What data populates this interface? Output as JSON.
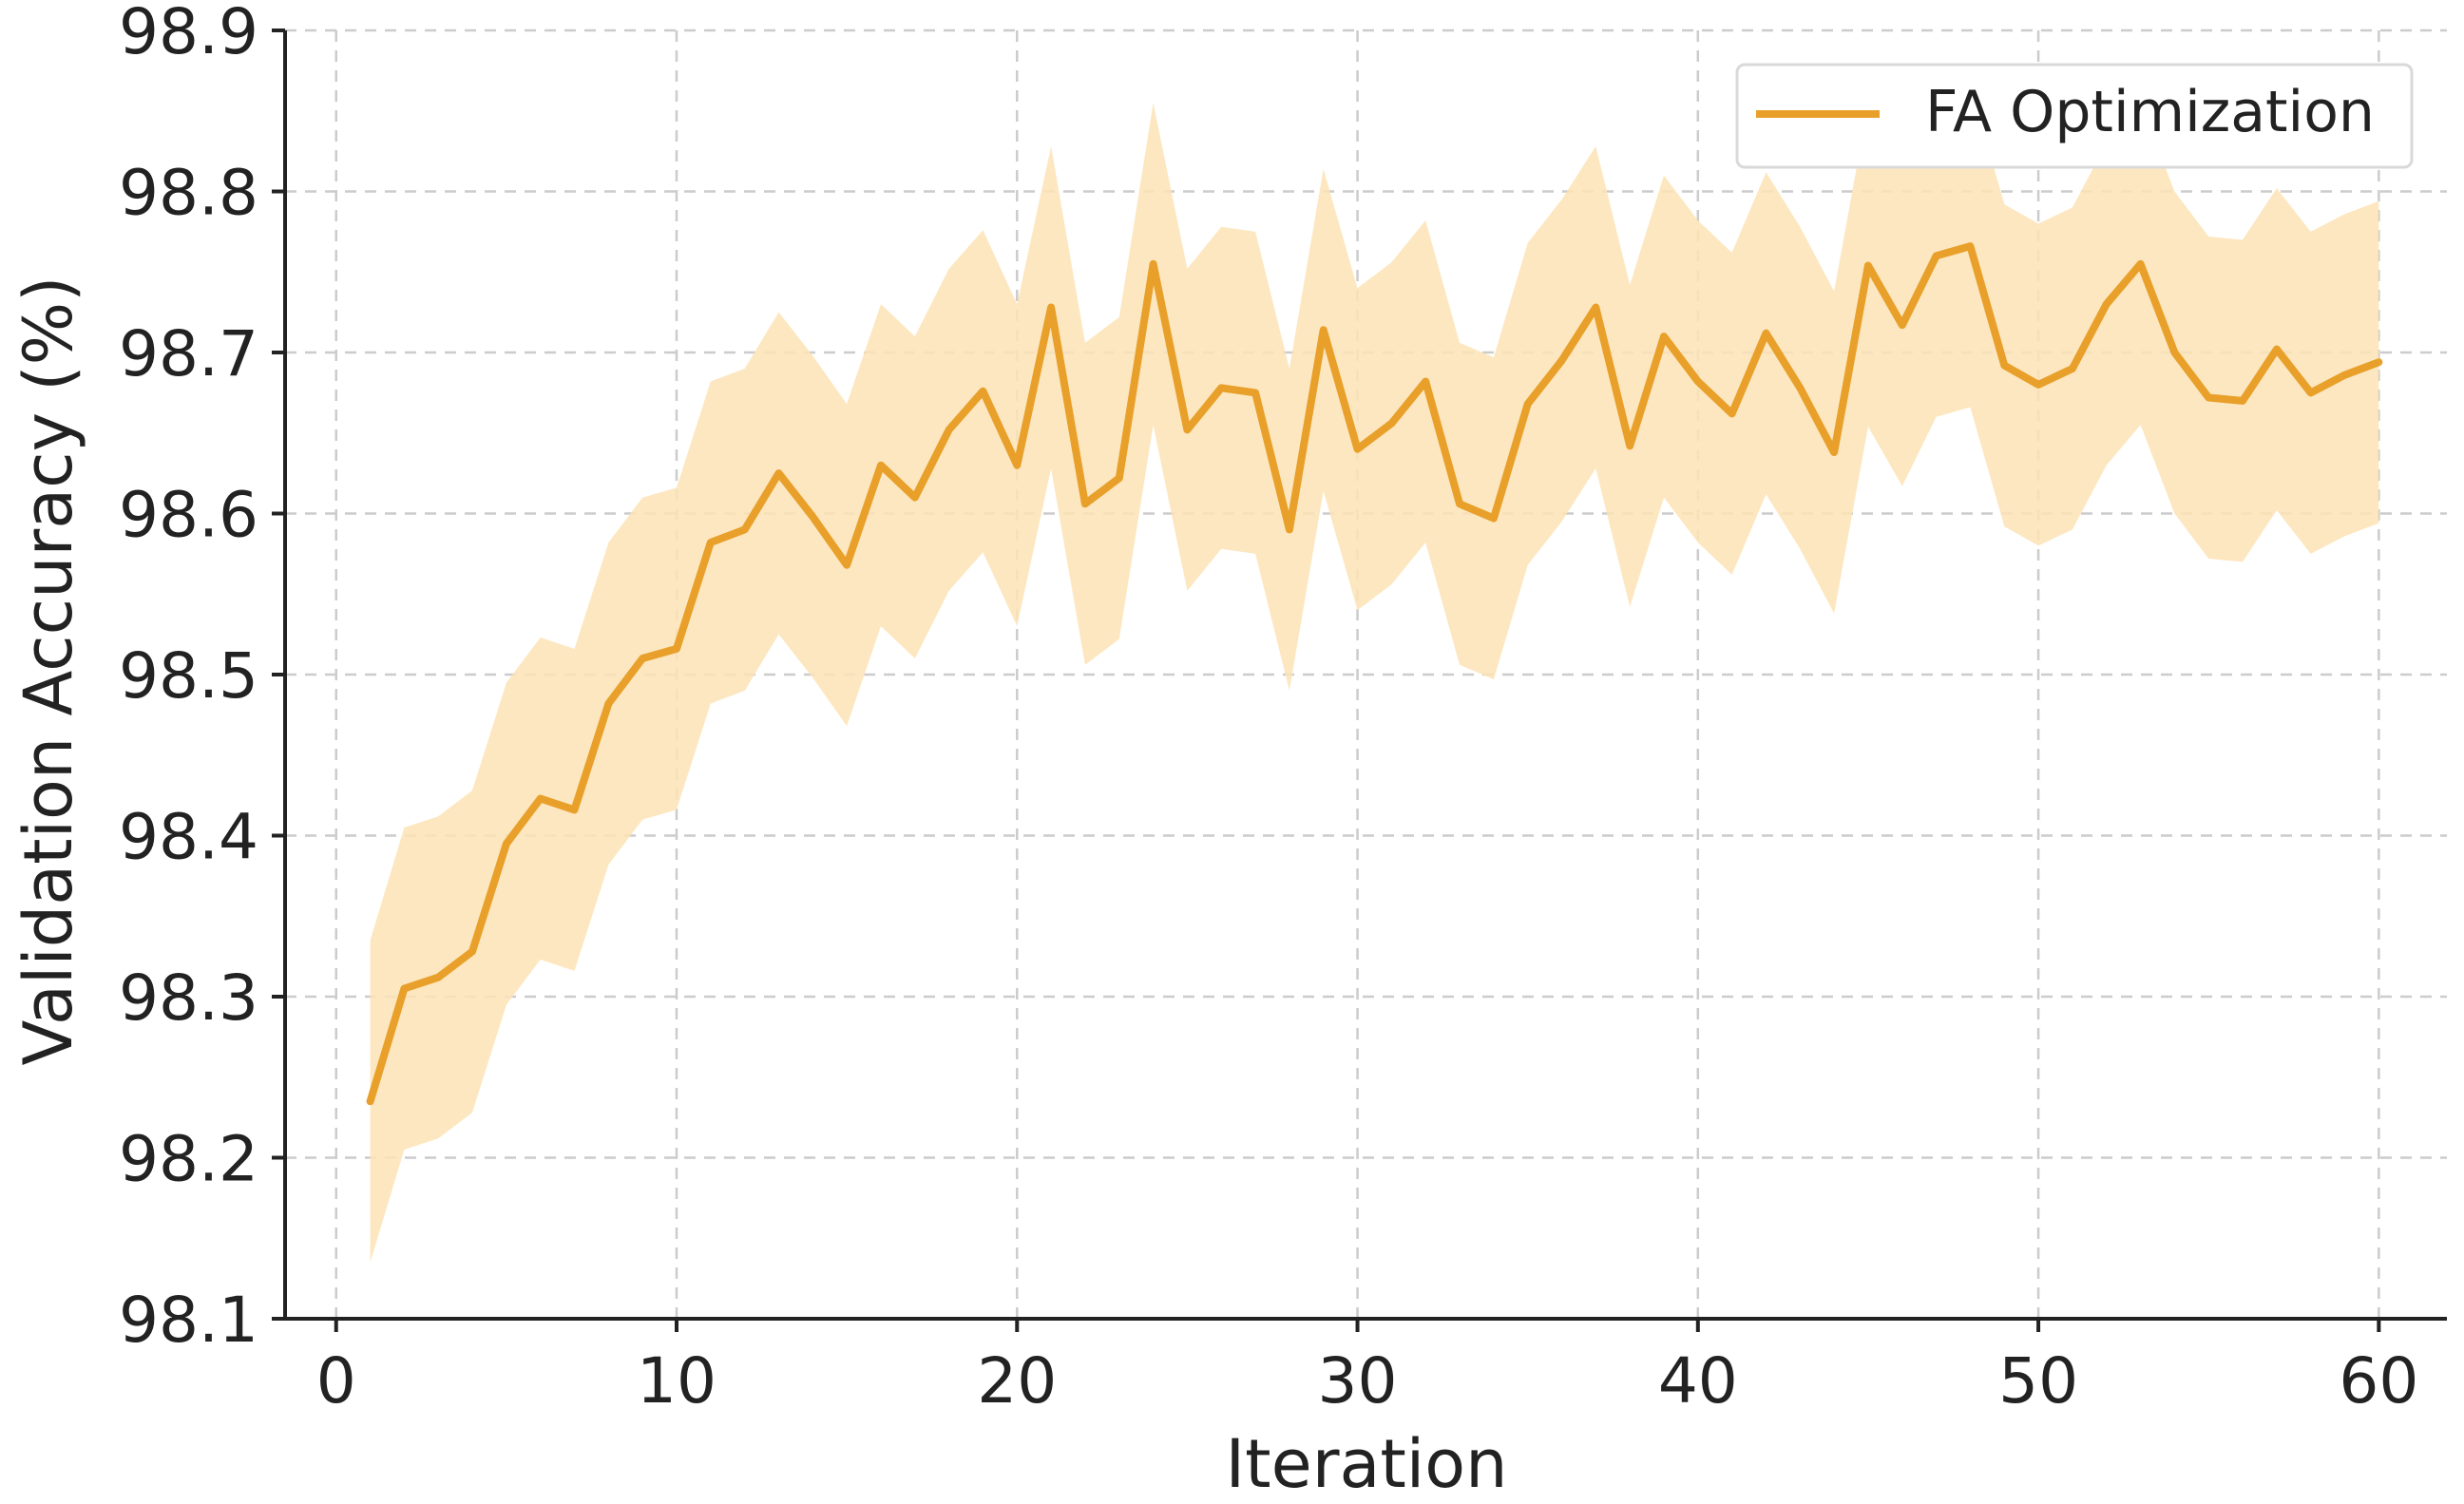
{
  "chart_data": {
    "type": "line",
    "xlabel": "Iteration",
    "ylabel": "Validation Accuracy (%)",
    "xlim": [
      -1.5,
      62
    ],
    "ylim": [
      98.1,
      98.9
    ],
    "xticks": [
      0,
      10,
      20,
      30,
      40,
      50,
      60
    ],
    "yticks": [
      98.1,
      98.2,
      98.3,
      98.4,
      98.5,
      98.6,
      98.7,
      98.8,
      98.9
    ],
    "xtick_labels": [
      "0",
      "10",
      "20",
      "30",
      "40",
      "50",
      "60"
    ],
    "ytick_labels": [
      "98.1",
      "98.2",
      "98.3",
      "98.4",
      "98.5",
      "98.6",
      "98.7",
      "98.8",
      "98.9"
    ],
    "grid": true,
    "legend_position": "top-right",
    "series": [
      {
        "name": "FA Optimization",
        "color": "#e8a02a",
        "band_color": "#fde3b5",
        "band": "±0.1",
        "x": [
          1,
          2,
          3,
          4,
          5,
          6,
          7,
          8,
          9,
          10,
          11,
          12,
          13,
          14,
          15,
          16,
          17,
          18,
          19,
          20,
          21,
          22,
          23,
          24,
          25,
          26,
          27,
          28,
          29,
          30,
          31,
          32,
          33,
          34,
          35,
          36,
          37,
          38,
          39,
          40,
          41,
          42,
          43,
          44,
          45,
          46,
          47,
          48,
          49,
          50,
          51,
          52,
          53,
          54,
          55,
          56,
          57,
          58,
          59,
          60
        ],
        "y": [
          98.235,
          98.305,
          98.312,
          98.328,
          98.395,
          98.423,
          98.416,
          98.482,
          98.51,
          98.516,
          98.582,
          98.59,
          98.625,
          98.598,
          98.568,
          98.63,
          98.61,
          98.652,
          98.676,
          98.63,
          98.728,
          98.606,
          98.622,
          98.755,
          98.652,
          98.678,
          98.675,
          98.59,
          98.714,
          98.64,
          98.656,
          98.682,
          98.606,
          98.597,
          98.668,
          98.695,
          98.728,
          98.642,
          98.71,
          98.682,
          98.662,
          98.712,
          98.678,
          98.638,
          98.754,
          98.717,
          98.76,
          98.766,
          98.692,
          98.68,
          98.69,
          98.73,
          98.755,
          98.7,
          98.672,
          98.67,
          98.702,
          98.675,
          98.686,
          98.694
        ],
        "lower": [
          98.135,
          98.205,
          98.212,
          98.228,
          98.295,
          98.323,
          98.316,
          98.382,
          98.41,
          98.416,
          98.482,
          98.49,
          98.525,
          98.498,
          98.468,
          98.53,
          98.51,
          98.552,
          98.576,
          98.53,
          98.628,
          98.506,
          98.522,
          98.655,
          98.552,
          98.578,
          98.575,
          98.49,
          98.614,
          98.54,
          98.556,
          98.582,
          98.506,
          98.497,
          98.568,
          98.595,
          98.628,
          98.542,
          98.61,
          98.582,
          98.562,
          98.612,
          98.578,
          98.538,
          98.654,
          98.617,
          98.66,
          98.666,
          98.592,
          98.58,
          98.59,
          98.63,
          98.655,
          98.6,
          98.572,
          98.57,
          98.602,
          98.575,
          98.586,
          98.594
        ],
        "upper": [
          98.335,
          98.405,
          98.412,
          98.428,
          98.495,
          98.523,
          98.516,
          98.582,
          98.61,
          98.616,
          98.682,
          98.69,
          98.725,
          98.698,
          98.668,
          98.73,
          98.71,
          98.752,
          98.776,
          98.73,
          98.828,
          98.706,
          98.722,
          98.855,
          98.752,
          98.778,
          98.775,
          98.69,
          98.814,
          98.74,
          98.756,
          98.782,
          98.706,
          98.697,
          98.768,
          98.795,
          98.828,
          98.742,
          98.81,
          98.782,
          98.762,
          98.812,
          98.778,
          98.738,
          98.854,
          98.817,
          98.86,
          98.866,
          98.792,
          98.78,
          98.79,
          98.83,
          98.855,
          98.8,
          98.772,
          98.77,
          98.802,
          98.775,
          98.786,
          98.794
        ]
      }
    ]
  }
}
